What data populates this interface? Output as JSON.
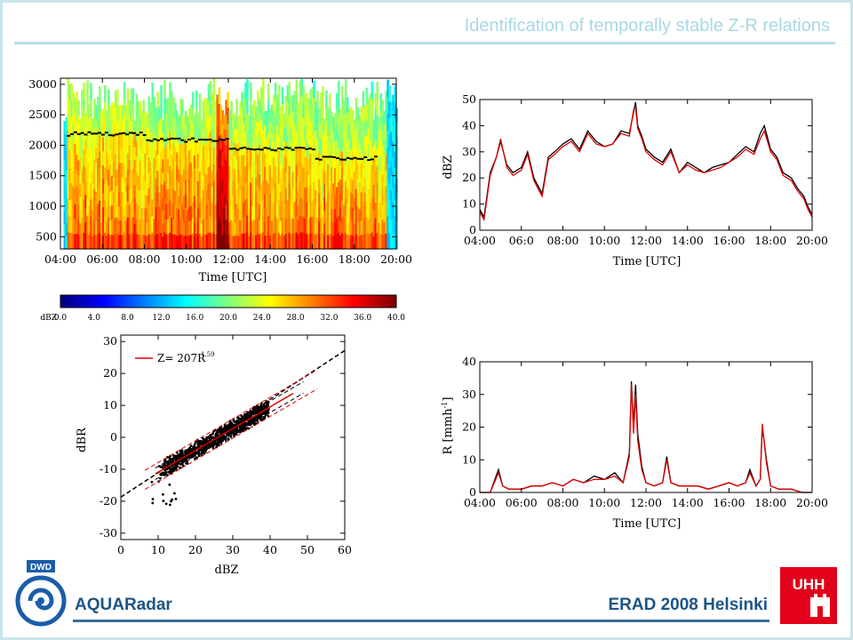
{
  "header": {
    "title": "Identification of temporally stable Z-R relations"
  },
  "footer": {
    "left": "AQUARadar",
    "right": "ERAD 2008 Helsinki",
    "dwd_logo_text": "DWD",
    "uhh_logo_text": "UHH"
  },
  "colors": {
    "accent": "#b8dde8",
    "footer_text": "#1d5586",
    "logo_red": "#e2001a",
    "logo_blue": "#1a5ea8",
    "series_red": "#e00000",
    "series_black": "#000000"
  },
  "chart_data": [
    {
      "type": "heatmap",
      "xlabel": "Time [UTC]",
      "ylabel": "",
      "xticks": [
        "04:00",
        "06:00",
        "08:00",
        "10:00",
        "12:00",
        "14:00",
        "16:00",
        "18:00",
        "20:00"
      ],
      "yticks": [
        "500",
        "1000",
        "1500",
        "2000",
        "2500",
        "3000"
      ],
      "xlim": [
        4,
        20
      ],
      "ylim": [
        300,
        3100
      ],
      "colorbar": {
        "label": "dBZ",
        "ticks": [
          "0.0",
          "4.0",
          "8.0",
          "12.0",
          "16.0",
          "20.0",
          "24.0",
          "28.0",
          "32.0",
          "36.0",
          "40.0"
        ],
        "range": [
          0,
          40
        ]
      },
      "description_values": {
        "bright_band_height_approx": [
          2200,
          2100,
          1950,
          1800
        ]
      }
    },
    {
      "type": "line",
      "xlabel": "Time [UTC]",
      "ylabel": "dBZ",
      "xticks": [
        "04:00",
        "06:0",
        "08:00",
        "10:00",
        "12:00",
        "14:00",
        "16:00",
        "18:00",
        "20:00"
      ],
      "yticks": [
        "0",
        "10",
        "20",
        "30",
        "40",
        "50"
      ],
      "xlim": [
        4,
        20
      ],
      "ylim": [
        0,
        50
      ],
      "series": [
        {
          "color": "#000000",
          "x": [
            4.0,
            4.2,
            4.5,
            4.8,
            5.0,
            5.3,
            5.6,
            6.0,
            6.3,
            6.6,
            7.0,
            7.3,
            7.6,
            8.0,
            8.4,
            8.8,
            9.2,
            9.6,
            10.0,
            10.4,
            10.8,
            11.2,
            11.4,
            11.5,
            11.6,
            11.8,
            12.0,
            12.4,
            12.8,
            13.2,
            13.6,
            14.0,
            14.4,
            14.8,
            15.2,
            15.6,
            16.0,
            16.4,
            16.8,
            17.2,
            17.5,
            17.7,
            18.0,
            18.3,
            18.6,
            19.0,
            19.3,
            19.6,
            19.8,
            20.0
          ],
          "y": [
            8,
            5,
            22,
            28,
            34,
            25,
            22,
            24,
            30,
            20,
            14,
            28,
            30,
            33,
            35,
            31,
            38,
            34,
            32,
            33,
            38,
            37,
            45,
            49,
            40,
            36,
            31,
            28,
            26,
            31,
            22,
            26,
            24,
            22,
            24,
            25,
            26,
            29,
            32,
            30,
            37,
            40,
            31,
            28,
            22,
            20,
            16,
            13,
            9,
            6
          ]
        },
        {
          "color": "#e00000",
          "x": [
            4.0,
            4.2,
            4.5,
            4.8,
            5.0,
            5.3,
            5.6,
            6.0,
            6.3,
            6.6,
            7.0,
            7.3,
            7.6,
            8.0,
            8.4,
            8.8,
            9.2,
            9.6,
            10.0,
            10.4,
            10.8,
            11.2,
            11.4,
            11.5,
            11.6,
            11.8,
            12.0,
            12.4,
            12.8,
            13.2,
            13.6,
            14.0,
            14.4,
            14.8,
            15.2,
            15.6,
            16.0,
            16.4,
            16.8,
            17.2,
            17.5,
            17.7,
            18.0,
            18.3,
            18.6,
            19.0,
            19.3,
            19.6,
            19.8,
            20.0
          ],
          "y": [
            7,
            4,
            21,
            28,
            35,
            24,
            21,
            23,
            29,
            19,
            13,
            27,
            29,
            32,
            34,
            30,
            37,
            33,
            32,
            33,
            37,
            36,
            46,
            47,
            39,
            35,
            30,
            27,
            25,
            30,
            22,
            25,
            23,
            22,
            23,
            24,
            26,
            28,
            31,
            29,
            35,
            38,
            30,
            27,
            21,
            19,
            15,
            12,
            8,
            5
          ]
        }
      ]
    },
    {
      "type": "scatter",
      "xlabel": "dBZ",
      "ylabel": "dBR",
      "xticks": [
        "0",
        "10",
        "20",
        "30",
        "40",
        "50",
        "60"
      ],
      "yticks": [
        "-30",
        "-20",
        "-10",
        "0",
        "10",
        "20",
        "30"
      ],
      "xlim": [
        -5,
        60
      ],
      "ylim": [
        -32,
        32
      ],
      "legend": {
        "label": "Z= 207R",
        "exponent": "1.59",
        "color": "#e00000",
        "position": "top-left"
      },
      "fit": {
        "a": 207,
        "b": 1.59
      }
    },
    {
      "type": "line",
      "xlabel": "Time [UTC]",
      "ylabel": "R [mmh",
      "ylabel_sup": "-1",
      "ylabel_end": "]",
      "xticks": [
        "04:00",
        "06:00",
        "08:00",
        "10:00",
        "12:00",
        "14:00",
        "16:00",
        "18:00",
        "20:00"
      ],
      "yticks": [
        "0",
        "10",
        "20",
        "30",
        "40"
      ],
      "xlim": [
        4,
        20
      ],
      "ylim": [
        0,
        40
      ],
      "series": [
        {
          "color": "#000000",
          "x": [
            4.0,
            4.5,
            4.9,
            5.1,
            5.4,
            6.0,
            6.5,
            7.0,
            7.5,
            8.0,
            8.5,
            9.0,
            9.5,
            10.0,
            10.5,
            10.9,
            11.2,
            11.3,
            11.4,
            11.5,
            11.6,
            11.8,
            12.0,
            12.4,
            12.8,
            13.0,
            13.2,
            13.6,
            14.0,
            14.5,
            15.0,
            15.5,
            16.0,
            16.4,
            16.8,
            17.0,
            17.3,
            17.5,
            17.6,
            17.8,
            18.0,
            18.4,
            19.0,
            19.5,
            20.0
          ],
          "y": [
            0,
            0,
            7,
            2,
            1,
            1,
            2,
            2,
            3,
            2,
            4,
            3,
            5,
            4,
            6,
            3,
            12,
            34,
            20,
            33,
            18,
            8,
            3,
            2,
            3,
            11,
            3,
            2,
            2,
            2,
            1,
            2,
            3,
            2,
            3,
            7,
            2,
            4,
            20,
            10,
            2,
            1,
            1,
            0,
            0
          ]
        },
        {
          "color": "#e00000",
          "x": [
            4.0,
            4.5,
            4.9,
            5.1,
            5.4,
            6.0,
            6.5,
            7.0,
            7.5,
            8.0,
            8.5,
            9.0,
            9.5,
            10.0,
            10.5,
            10.9,
            11.2,
            11.3,
            11.4,
            11.5,
            11.6,
            11.8,
            12.0,
            12.4,
            12.8,
            13.0,
            13.2,
            13.6,
            14.0,
            14.5,
            15.0,
            15.5,
            16.0,
            16.4,
            16.8,
            17.0,
            17.3,
            17.5,
            17.6,
            17.8,
            18.0,
            18.4,
            19.0,
            19.5,
            20.0
          ],
          "y": [
            0,
            0,
            6,
            2,
            1,
            1,
            2,
            2,
            3,
            2,
            4,
            3,
            4,
            4,
            5,
            3,
            11,
            33,
            18,
            30,
            16,
            7,
            3,
            2,
            3,
            10,
            3,
            2,
            2,
            2,
            1,
            2,
            3,
            2,
            3,
            6,
            2,
            4,
            21,
            9,
            2,
            1,
            1,
            0,
            0
          ]
        }
      ]
    }
  ]
}
